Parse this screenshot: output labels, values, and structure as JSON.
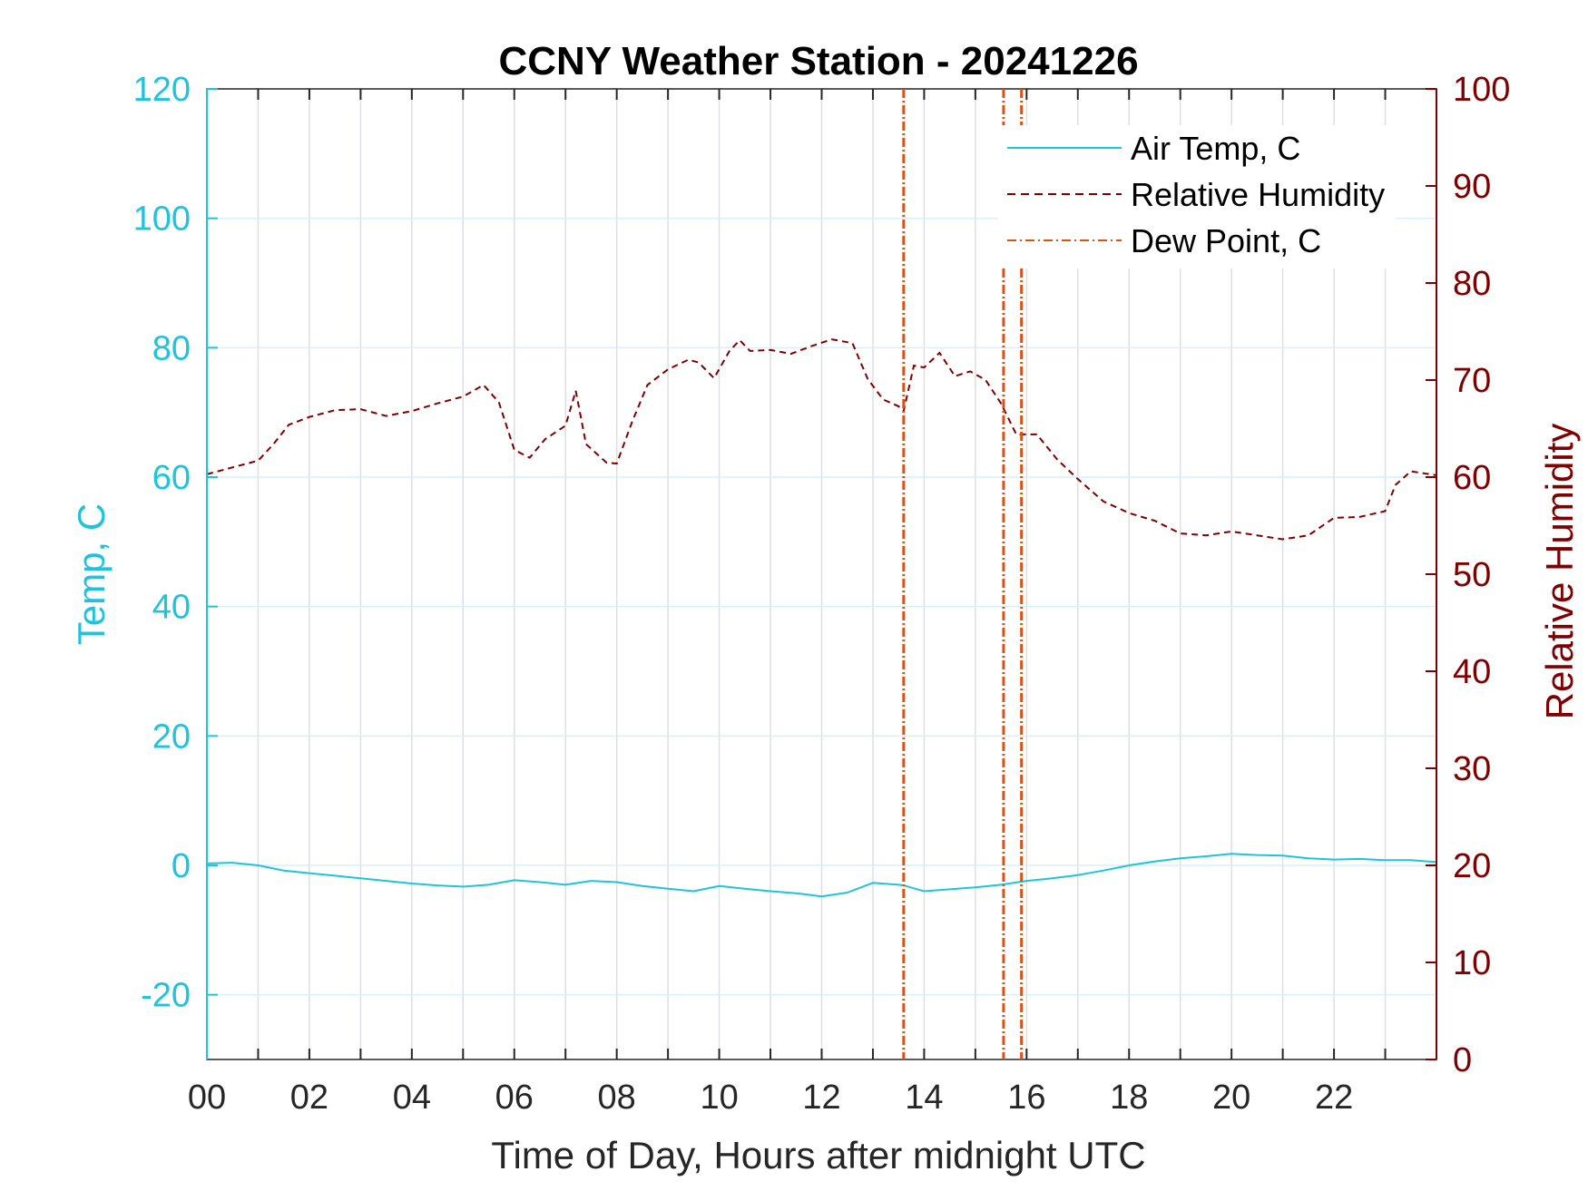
{
  "chart_data": {
    "type": "line",
    "title": "CCNY Weather Station - 20241226",
    "xlabel": "Time of Day, Hours after midnight UTC",
    "ylabel_left": "Temp, C",
    "ylabel_right": "Relative Humidity",
    "xlim": [
      0,
      24
    ],
    "ylim_left": [
      -30,
      120
    ],
    "ylim_right": [
      0,
      100
    ],
    "x_ticks": [
      0,
      2,
      4,
      6,
      8,
      10,
      12,
      14,
      16,
      18,
      20,
      22
    ],
    "x_tick_labels": [
      "00",
      "02",
      "04",
      "06",
      "08",
      "10",
      "12",
      "14",
      "16",
      "18",
      "20",
      "22"
    ],
    "y_left_ticks": [
      -20,
      0,
      20,
      40,
      60,
      80,
      100,
      120
    ],
    "y_left_tick_labels": [
      "-20",
      "0",
      "20",
      "40",
      "60",
      "80",
      "100",
      "120"
    ],
    "y_right_ticks": [
      0,
      10,
      20,
      30,
      40,
      50,
      60,
      70,
      80,
      90,
      100
    ],
    "y_right_tick_labels": [
      "0",
      "10",
      "20",
      "30",
      "40",
      "50",
      "60",
      "70",
      "80",
      "90",
      "100"
    ],
    "grid": true,
    "legend_position": "top-right",
    "colors": {
      "temp": "#1fc4dc",
      "humidity": "#7f0000",
      "dewpoint": "#d95319",
      "axis_left": "#1fc4dc",
      "axis_right": "#7f0000"
    },
    "series": [
      {
        "name": "Air Temp, C",
        "axis": "left",
        "style": "solid",
        "x": [
          0,
          0.5,
          1,
          1.5,
          2,
          2.5,
          3,
          3.5,
          4,
          4.5,
          5,
          5.5,
          6,
          6.5,
          7,
          7.5,
          8,
          8.5,
          9,
          9.5,
          10,
          10.5,
          11,
          11.5,
          12,
          12.5,
          13,
          13.5,
          13.6,
          14,
          14.5,
          15,
          15.5,
          16,
          16.5,
          17,
          17.5,
          18,
          18.5,
          19,
          19.5,
          20,
          20.5,
          21,
          21.5,
          22,
          22.5,
          23,
          23.5,
          24
        ],
        "y": [
          0.3,
          0.4,
          0,
          -0.8,
          -1.2,
          -1.6,
          -2,
          -2.4,
          -2.8,
          -3.1,
          -3.3,
          -3,
          -2.3,
          -2.6,
          -3,
          -2.4,
          -2.6,
          -3.2,
          -3.6,
          -4,
          -3.2,
          -3.6,
          -4,
          -4.3,
          -4.8,
          -4.2,
          -2.7,
          -3,
          -3.1,
          -4,
          -3.7,
          -3.4,
          -3,
          -2.4,
          -2,
          -1.5,
          -0.8,
          0,
          0.6,
          1.1,
          1.4,
          1.8,
          1.6,
          1.5,
          1.1,
          0.9,
          1,
          0.8,
          0.8,
          0.5
        ]
      },
      {
        "name": "Relative Humidity",
        "axis": "right",
        "style": "dashed",
        "x": [
          0,
          0.5,
          1,
          1.3,
          1.6,
          2,
          2.5,
          3,
          3.5,
          4,
          4.5,
          5,
          5.4,
          5.7,
          6,
          6.3,
          6.6,
          7,
          7.2,
          7.4,
          7.8,
          8,
          8.3,
          8.6,
          9,
          9.4,
          9.6,
          9.9,
          10.2,
          10.4,
          10.6,
          11,
          11.4,
          11.8,
          12.2,
          12.6,
          12.9,
          13.2,
          13.5,
          13.6,
          13.8,
          14,
          14.3,
          14.6,
          14.9,
          15.2,
          15.5,
          15.8,
          16.2,
          16.6,
          17,
          17.5,
          18,
          18.5,
          19,
          19.5,
          20,
          20.5,
          21,
          21.5,
          22,
          22.5,
          23,
          23.2,
          23.5,
          24
        ],
        "y": [
          60.3,
          61,
          61.7,
          63.4,
          65.4,
          66.2,
          66.9,
          67,
          66.3,
          66.8,
          67.6,
          68.3,
          69.5,
          67.7,
          62.8,
          62,
          63.9,
          65.3,
          68.9,
          63.4,
          61.5,
          61.4,
          65.7,
          69.5,
          71.1,
          72.1,
          71.8,
          70.2,
          73,
          74.1,
          73,
          73.1,
          72.7,
          73.5,
          74.2,
          73.8,
          70.1,
          68,
          67.3,
          66.8,
          71.5,
          71.3,
          72.8,
          70.4,
          70.9,
          70,
          67.6,
          64.4,
          64.4,
          61.8,
          59.8,
          57.5,
          56.3,
          55.5,
          54.2,
          54,
          54.4,
          54,
          53.6,
          54,
          55.8,
          55.9,
          56.5,
          59.2,
          60.6,
          60.2
        ]
      },
      {
        "name": "Dew Point, C",
        "axis": "left",
        "style": "dash-dot",
        "note": "Out-of-range dew point values appear as vertical spikes",
        "spike_x": [
          13.6,
          15.55,
          15.9
        ]
      }
    ]
  }
}
